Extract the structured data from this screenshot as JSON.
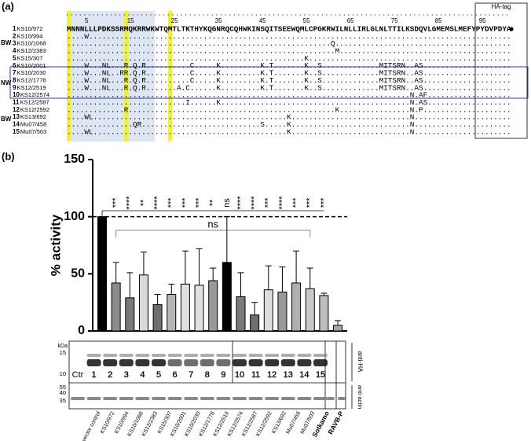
{
  "panel_a": {
    "label": "(a)",
    "ha_tag": "HA-tag",
    "ruler": [
      5,
      15,
      25,
      35,
      45,
      55,
      65,
      75,
      85,
      95
    ],
    "groups": [
      {
        "label": "BW"
      },
      {
        "label": "NW"
      },
      {
        "label": "BW"
      }
    ],
    "rows": [
      {
        "num": 1,
        "name": "KS10/972",
        "seq_blocks": [
          "MNNNLLLPDK",
          "SSRMQKRRWK",
          "WTQMTLTKTH",
          "YKQGNRQCQH",
          "WKINSQITSE",
          "EWQMLCPGKR",
          "WILNLLIRLG",
          "LNLTTILKSD",
          "QVLGMEMSLM",
          "EFYPYDVPDY",
          "A"
        ]
      },
      {
        "num": 2,
        "name": "KS10/994",
        "seq_blocks": [
          "....W.....",
          "..........",
          "..........",
          "..........",
          "..........",
          "..........",
          "..........",
          "..........",
          "..........",
          "..........",
          "."
        ]
      },
      {
        "num": 3,
        "name": "KS10/1068",
        "seq_blocks": [
          "..........",
          "..........",
          "..........",
          "..........",
          "..........",
          "..........",
          "Q.........",
          "..........",
          "..........",
          "..........",
          "."
        ]
      },
      {
        "num": 4,
        "name": "KS12/2383",
        "seq_blocks": [
          "..........",
          "..........",
          "..........",
          "..........",
          "..........",
          "..........",
          ".M........",
          "..........",
          "..........",
          "..........",
          "."
        ]
      },
      {
        "num": 5,
        "name": "KS15/307",
        "seq_blocks": [
          "..........",
          "..........",
          "..........",
          "..........",
          "..........",
          "....K.....",
          "..........",
          "..........",
          "..........",
          "..........",
          "."
        ]
      },
      {
        "num": 6,
        "name": "KS10/2001",
        "seq_blocks": [
          "....W...NL",
          "...R.Q.R..",
          "........C.",
          "....K.....",
          "....K.T...",
          "....K..S..",
          "..........",
          ".MITSRN..A",
          "S.........",
          "..........",
          "."
        ]
      },
      {
        "num": 7,
        "name": "KS10/2030",
        "seq_blocks": [
          "....W...NL",
          "..RR.Q.R..",
          "........C.",
          "....K.....",
          "....K.T...",
          "....K..S..",
          "..........",
          ".MITSRN..A",
          "S.........",
          "..........",
          "."
        ]
      },
      {
        "num": 8,
        "name": "KS12/1778",
        "seq_blocks": [
          "....W...NL",
          "...R.Q.R..",
          "........C.",
          "....K.....",
          "....K.T...",
          "....K..S..",
          "..........",
          ".MITSRN..A",
          "S.........",
          "..........",
          "."
        ]
      },
      {
        "num": 9,
        "name": "KS12/2519",
        "seq_blocks": [
          "....W...NL",
          "...R.Q.R..",
          ".....A.C..",
          "....K.....",
          "....K.T...",
          "....K..S..",
          "..........",
          ".MITSRN..A",
          "S.........",
          "..........",
          "."
        ]
      },
      {
        "num": 10,
        "name": "KS12/2574",
        "seq_blocks": [
          "..........",
          "..........",
          "..........",
          "..........",
          "..........",
          "..........",
          "..........",
          "........N.",
          "AF........",
          "..........",
          "."
        ]
      },
      {
        "num": 11,
        "name": "KS12/2587",
        "seq_blocks": [
          "..........",
          "..........",
          ".......I..",
          "....K.....",
          "..........",
          "..........",
          "..........",
          "........N.",
          "AS........",
          "..........",
          "."
        ]
      },
      {
        "num": 12,
        "name": "KS12/2592",
        "seq_blocks": [
          "..........",
          "...R......",
          "..........",
          "..........",
          "..........",
          "..........",
          ".K........",
          "........N.",
          "P.........",
          "..........",
          "."
        ]
      },
      {
        "num": 13,
        "name": "KS13/692",
        "seq_blocks": [
          "....WL....",
          "..........",
          "..........",
          "..........",
          "..........",
          "K.........",
          "..........",
          "........N.",
          "..........",
          "..........",
          "."
        ]
      },
      {
        "num": 14,
        "name": "Mu07/458",
        "seq_blocks": [
          "..........",
          ".....QR...",
          "..........",
          "..........",
          "....S.....",
          "K.........",
          "..........",
          "........N.",
          "..........",
          "..........",
          "."
        ]
      },
      {
        "num": 15,
        "name": "Mu07/503",
        "seq_blocks": [
          "....WL....",
          "..........",
          "..........",
          "..........",
          "..........",
          "K.........",
          "..........",
          "........N.",
          "..........",
          "..........",
          "."
        ]
      }
    ]
  },
  "panel_b_label": "(b)",
  "chart_data": {
    "type": "bar",
    "y_label": "% activity",
    "categories": [
      "vector control",
      "KS10/972",
      "KS10/994",
      "KS10/1068",
      "KS12/2383",
      "KS15/307",
      "KS10/2001",
      "KS10/2030",
      "KS12/1778",
      "KS12/2519",
      "KS12/2574",
      "KS12/2587",
      "KS12/2592",
      "KS13/692",
      "Mu07/458",
      "Mu07/503",
      "Sotkamo",
      "RAVB-P"
    ],
    "values": [
      100,
      42,
      29,
      49,
      23,
      32,
      41,
      40,
      44,
      60,
      30,
      14,
      36,
      34,
      42,
      37,
      31,
      5
    ],
    "errors": [
      0,
      18,
      22,
      20,
      9,
      9,
      29,
      32,
      11,
      40,
      21,
      11,
      21,
      22,
      28,
      18,
      2,
      4
    ],
    "colors": [
      "#000000",
      "#8c8c8c",
      "#7a7a7a",
      "#d9d9d9",
      "#6e6e6e",
      "#b5b5b5",
      "#e0e0e0",
      "#e0e0e0",
      "#9a9a9a",
      "#000000",
      "#7a7a7a",
      "#6e6e6e",
      "#dcdcdc",
      "#9a9a9a",
      "#b0b0b0",
      "#c8c8c8",
      "#bdbdbd",
      "#a8a8a8"
    ],
    "significance": [
      null,
      "***",
      "****",
      "**",
      "****",
      "***",
      "***",
      "***",
      "**",
      "ns",
      "****",
      "****",
      "***",
      "****",
      "***",
      "***",
      "***",
      null
    ],
    "bracket_label": "ns",
    "reference_line": 100,
    "ylim": [
      0,
      150
    ],
    "yticks": [
      0,
      50,
      100,
      150
    ]
  },
  "blot": {
    "kda_label": "kDa",
    "ha_markers": [
      "15",
      "10"
    ],
    "actin_markers": [
      "55",
      "40",
      "35"
    ],
    "lanes": [
      "Ctr",
      "1",
      "2",
      "3",
      "4",
      "5",
      "6",
      "7",
      "8",
      "9",
      "10",
      "11",
      "12",
      "13",
      "14",
      "15"
    ],
    "antibodies": [
      "anti-HA",
      "anti-actin"
    ]
  }
}
